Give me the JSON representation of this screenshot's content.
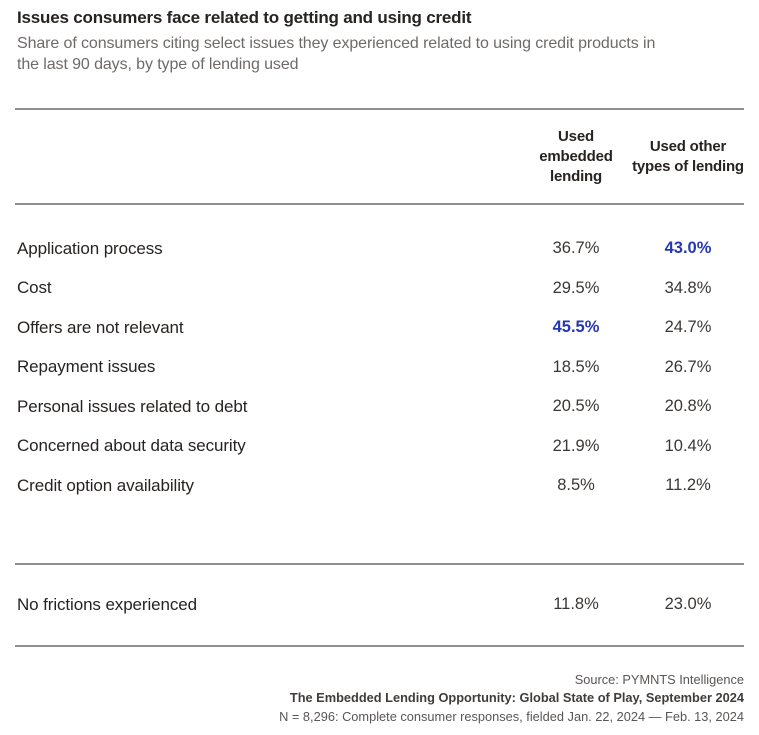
{
  "header": {
    "title": "Issues consumers face related to getting and using credit",
    "subtitle": "Share of consumers citing select issues they experienced related to using credit products in the last 90 days, by type of lending used"
  },
  "table": {
    "columns": [
      "Used embedded lending",
      "Used other types of lending"
    ],
    "rows": [
      {
        "label": "Application process",
        "embedded": "36.7%",
        "other": "43.0%",
        "highlight": "other"
      },
      {
        "label": "Cost",
        "embedded": "29.5%",
        "other": "34.8%",
        "highlight": "none"
      },
      {
        "label": "Offers are not relevant",
        "embedded": "45.5%",
        "other": "24.7%",
        "highlight": "embedded"
      },
      {
        "label": "Repayment issues",
        "embedded": "18.5%",
        "other": "26.7%",
        "highlight": "none"
      },
      {
        "label": "Personal issues related to debt",
        "embedded": "20.5%",
        "other": "20.8%",
        "highlight": "none"
      },
      {
        "label": "Concerned about data security",
        "embedded": "21.9%",
        "other": "10.4%",
        "highlight": "none"
      },
      {
        "label": "Credit option availability",
        "embedded": "8.5%",
        "other": "11.2%",
        "highlight": "none"
      }
    ],
    "summary_row": {
      "label": "No frictions experienced",
      "embedded": "11.8%",
      "other": "23.0%",
      "highlight": "none"
    }
  },
  "footer": {
    "source": "Source: PYMNTS Intelligence",
    "report": "The Embedded Lending Opportunity: Global State of Play, September 2024",
    "note": "N = 8,296: Complete consumer responses, fielded Jan. 22, 2024 — Feb. 13, 2024"
  },
  "colors": {
    "highlight_blue": "#2737b3",
    "text_dark": "#272321",
    "text_gray": "#6e6a67",
    "rule_gray": "#8f8f8f"
  },
  "chart_data": {
    "type": "table",
    "title": "Issues consumers face related to getting and using credit",
    "subtitle": "Share of consumers citing select issues they experienced related to using credit products in the last 90 days, by type of lending used",
    "categories": [
      "Application process",
      "Cost",
      "Offers are not relevant",
      "Repayment issues",
      "Personal issues related to debt",
      "Concerned about data security",
      "Credit option availability",
      "No frictions experienced"
    ],
    "series": [
      {
        "name": "Used embedded lending",
        "values": [
          36.7,
          29.5,
          45.5,
          18.5,
          20.5,
          21.9,
          8.5,
          11.8
        ]
      },
      {
        "name": "Used other types of lending",
        "values": [
          43.0,
          34.8,
          24.7,
          26.7,
          20.8,
          10.4,
          11.2,
          23.0
        ]
      }
    ],
    "unit": "%",
    "highlighted_cells": [
      {
        "category": "Application process",
        "series": "Used other types of lending",
        "value": 43.0
      },
      {
        "category": "Offers are not relevant",
        "series": "Used embedded lending",
        "value": 45.5
      }
    ],
    "source": "PYMNTS Intelligence, The Embedded Lending Opportunity: Global State of Play, September 2024",
    "sample_note": "N = 8,296: Complete consumer responses, fielded Jan. 22, 2024 — Feb. 13, 2024"
  }
}
